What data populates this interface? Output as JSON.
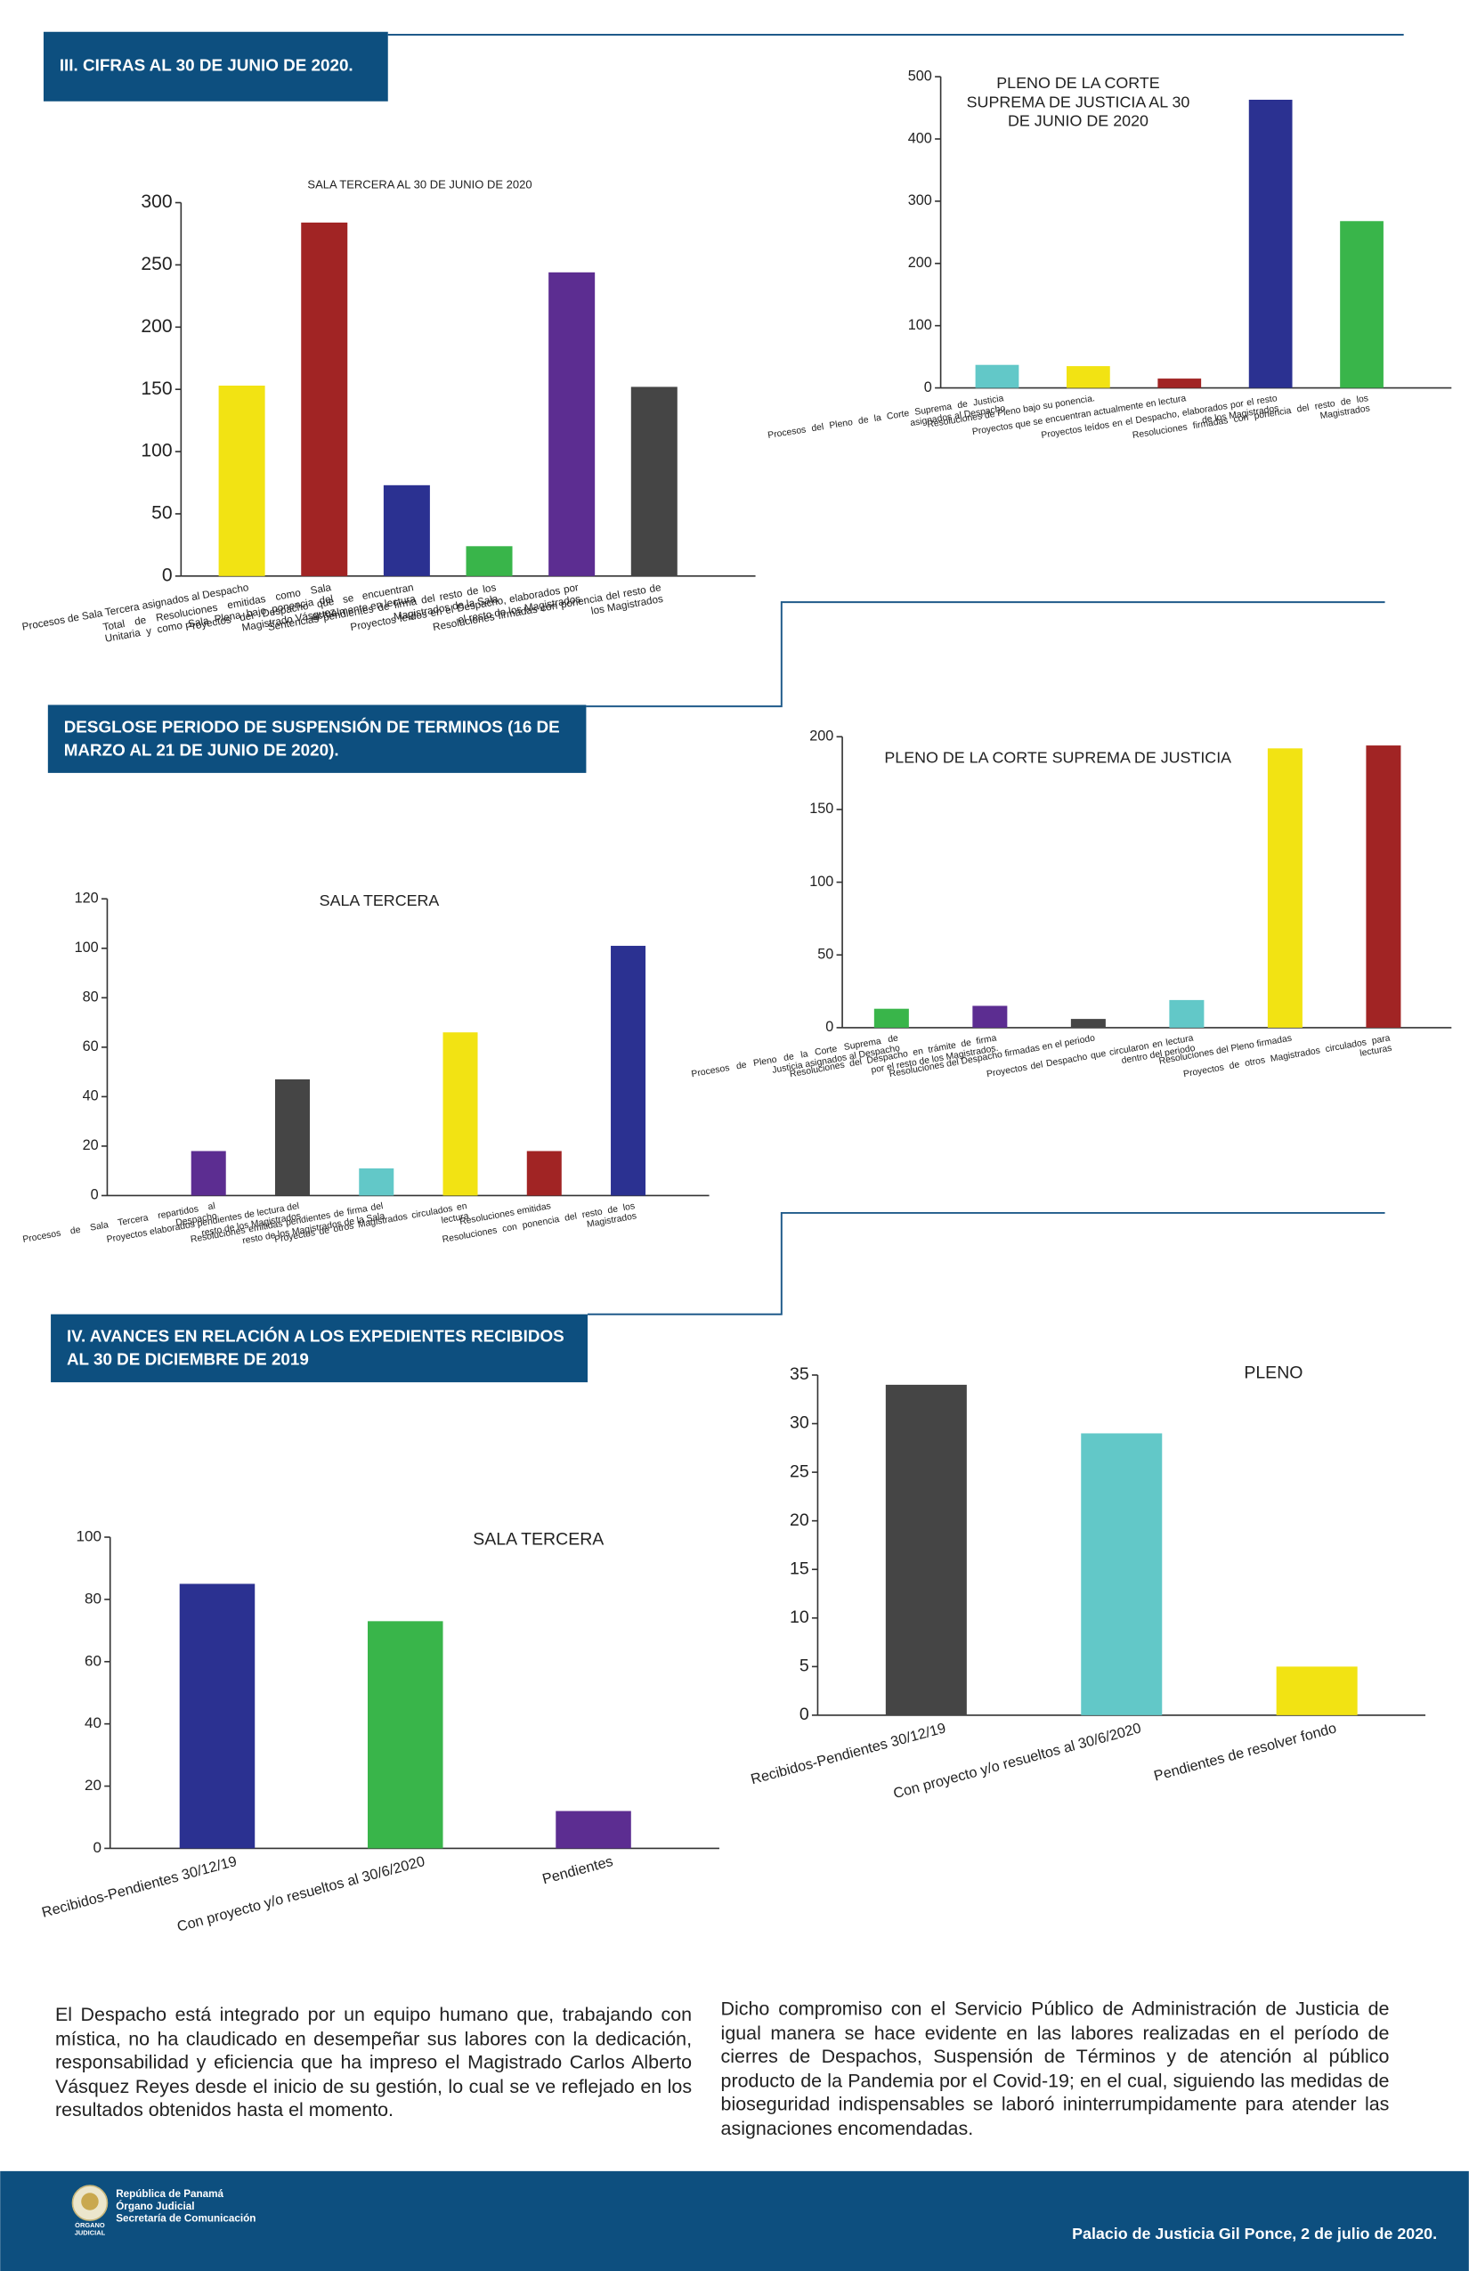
{
  "headers": [
    "III. CIFRAS AL 30 DE JUNIO DE 2020.",
    "DESGLOSE PERIODO DE SUSPENSIÓN DE TERMINOS (16 DE MARZO AL 21 DE JUNIO DE 2020).",
    "IV. AVANCES EN RELACIÓN A LOS EXPEDIENTES RECIBIDOS AL 30 DE DICIEMBRE DE 2019"
  ],
  "chart_data": [
    {
      "type": "bar",
      "title": "SALA TERCERA AL 30 DE JUNIO DE 2020",
      "categories": [
        "Procesos de Sala Tercera asignados al Despacho",
        "Total de Resoluciones emitidas como Sala Unitaria y como Sala Plena bajo ponencia del Magistrado Vásquez",
        "Proyectos del Despacho que se encuentran actualmente en lectura",
        "Sentencias pendientes de firma del resto de los Magistrados de la Sala",
        "Proyectos leídos en el Despacho, elaborados por el resto de los Magistrados",
        "Resoluciones firmadas con ponencia del resto de los Magistrados"
      ],
      "values": [
        153,
        284,
        73,
        24,
        244,
        152
      ],
      "colors": [
        "#f2e313",
        "#a12424",
        "#2b3191",
        "#39b54a",
        "#5c2d91",
        "#454545"
      ],
      "ylim": [
        0,
        300
      ],
      "yticks": [
        0,
        50,
        100,
        150,
        200,
        250,
        300
      ]
    },
    {
      "type": "bar",
      "title": "PLENO DE LA CORTE SUPREMA DE JUSTICIA AL 30 DE JUNIO DE 2020",
      "categories": [
        "Procesos del Pleno de la Corte Suprema de Justicia asignados al Despacho",
        "Resoluciones de Pleno bajo su ponencia.",
        "Proyectos que se encuentran actualmente en lectura",
        "Proyectos leídos en el Despacho, elaborados por el resto de los Magistrados",
        "Resoluciones firmadas con ponencia del resto de los Magistrados"
      ],
      "values": [
        37,
        35,
        15,
        463,
        268
      ],
      "colors": [
        "#62c8c8",
        "#f2e313",
        "#a12424",
        "#2b3191",
        "#39b54a"
      ],
      "ylim": [
        0,
        500
      ],
      "yticks": [
        0,
        100,
        200,
        300,
        400,
        500
      ]
    },
    {
      "type": "bar",
      "title": "SALA TERCERA",
      "categories": [
        "Procesos de Sala Tercera repartidos al Despacho",
        "Proyectos elaborados pendientes de lectura del resto de los Magistrados",
        "Resoluciones emitidas pendientes de firma del resto de los Magistrados de la Sala",
        "Proyectos de otros Magistrados circulados en lectura",
        "Resoluciones emitidas",
        "Resoluciones con ponencia del resto de los Magistrados"
      ],
      "values": [
        18,
        47,
        11,
        66,
        18,
        101
      ],
      "colors": [
        "#5c2d91",
        "#454545",
        "#62c8c8",
        "#f2e313",
        "#a12424",
        "#2b3191"
      ],
      "ylim": [
        0,
        120
      ],
      "yticks": [
        0,
        20,
        40,
        60,
        80,
        100,
        120
      ]
    },
    {
      "type": "bar",
      "title": "PLENO DE LA CORTE SUPREMA DE JUSTICIA",
      "categories": [
        "Procesos de Pleno de la Corte Suprema de Justicia asignados al Despacho",
        "Resoluciones del Despacho en trámite de firma por el resto de los Magistrados.",
        "Resoluciones del Despacho firmadas en el periodo",
        "Proyectos del Despacho que circularon en lectura dentro del periodo",
        "Resoluciones del Pleno firmadas",
        "Proyectos de otros Magistrados circulados para lecturas"
      ],
      "values": [
        13,
        15,
        6,
        19,
        192,
        194
      ],
      "colors": [
        "#39b54a",
        "#5c2d91",
        "#454545",
        "#62c8c8",
        "#f2e313",
        "#a12424"
      ],
      "ylim": [
        0,
        200
      ],
      "yticks": [
        0,
        50,
        100,
        150,
        200
      ]
    },
    {
      "type": "bar",
      "title": "SALA TERCERA",
      "categories": [
        "Recibidos-Pendientes  30/12/19",
        "Con proyecto y/o resueltos al 30/6/2020",
        "Pendientes"
      ],
      "values": [
        85,
        73,
        12
      ],
      "colors": [
        "#2b3191",
        "#39b54a",
        "#5c2d91"
      ],
      "ylim": [
        0,
        100
      ],
      "yticks": [
        0,
        20,
        40,
        60,
        80,
        100
      ]
    },
    {
      "type": "bar",
      "title": "PLENO",
      "categories": [
        "Recibidos-Pendientes  30/12/19",
        "Con proyecto y/o resueltos al 30/6/2020",
        "Pendientes de resolver fondo"
      ],
      "values": [
        34,
        29,
        5
      ],
      "colors": [
        "#454545",
        "#62c8c8",
        "#f2e313"
      ],
      "ylim": [
        0,
        35
      ],
      "yticks": [
        0,
        5,
        10,
        15,
        20,
        25,
        30,
        35
      ]
    }
  ],
  "paragraphs": [
    "El Despacho está integrado por un equipo humano que, trabajando con mística, no ha claudicado en desempeñar sus labores con la dedicación, responsabilidad y eficiencia que ha impreso el Magistrado Carlos Alberto Vásquez Reyes desde el inicio de su gestión, lo cual se ve reflejado en los resultados obtenidos hasta el momento.",
    "Dicho compromiso con el Servicio Público de Administración de Justicia de igual manera se hace evidente en las labores realizadas en el período de cierres de Despachos, Suspensión de Términos y de atención al público producto de la Pandemia por el Covid-19; en el cual, siguiendo las medidas de bioseguridad indispensables se laboró ininterrumpidamente para atender las asignaciones encomendadas."
  ],
  "footer": {
    "emblem_text": "ÓRGANO JUDICIAL",
    "logo_lines": [
      "República de Panamá",
      "Órgano Judicial",
      "Secretaría de Comunicación"
    ],
    "place_date": "Palacio de Justicia Gil Ponce, 2 de julio de 2020."
  }
}
